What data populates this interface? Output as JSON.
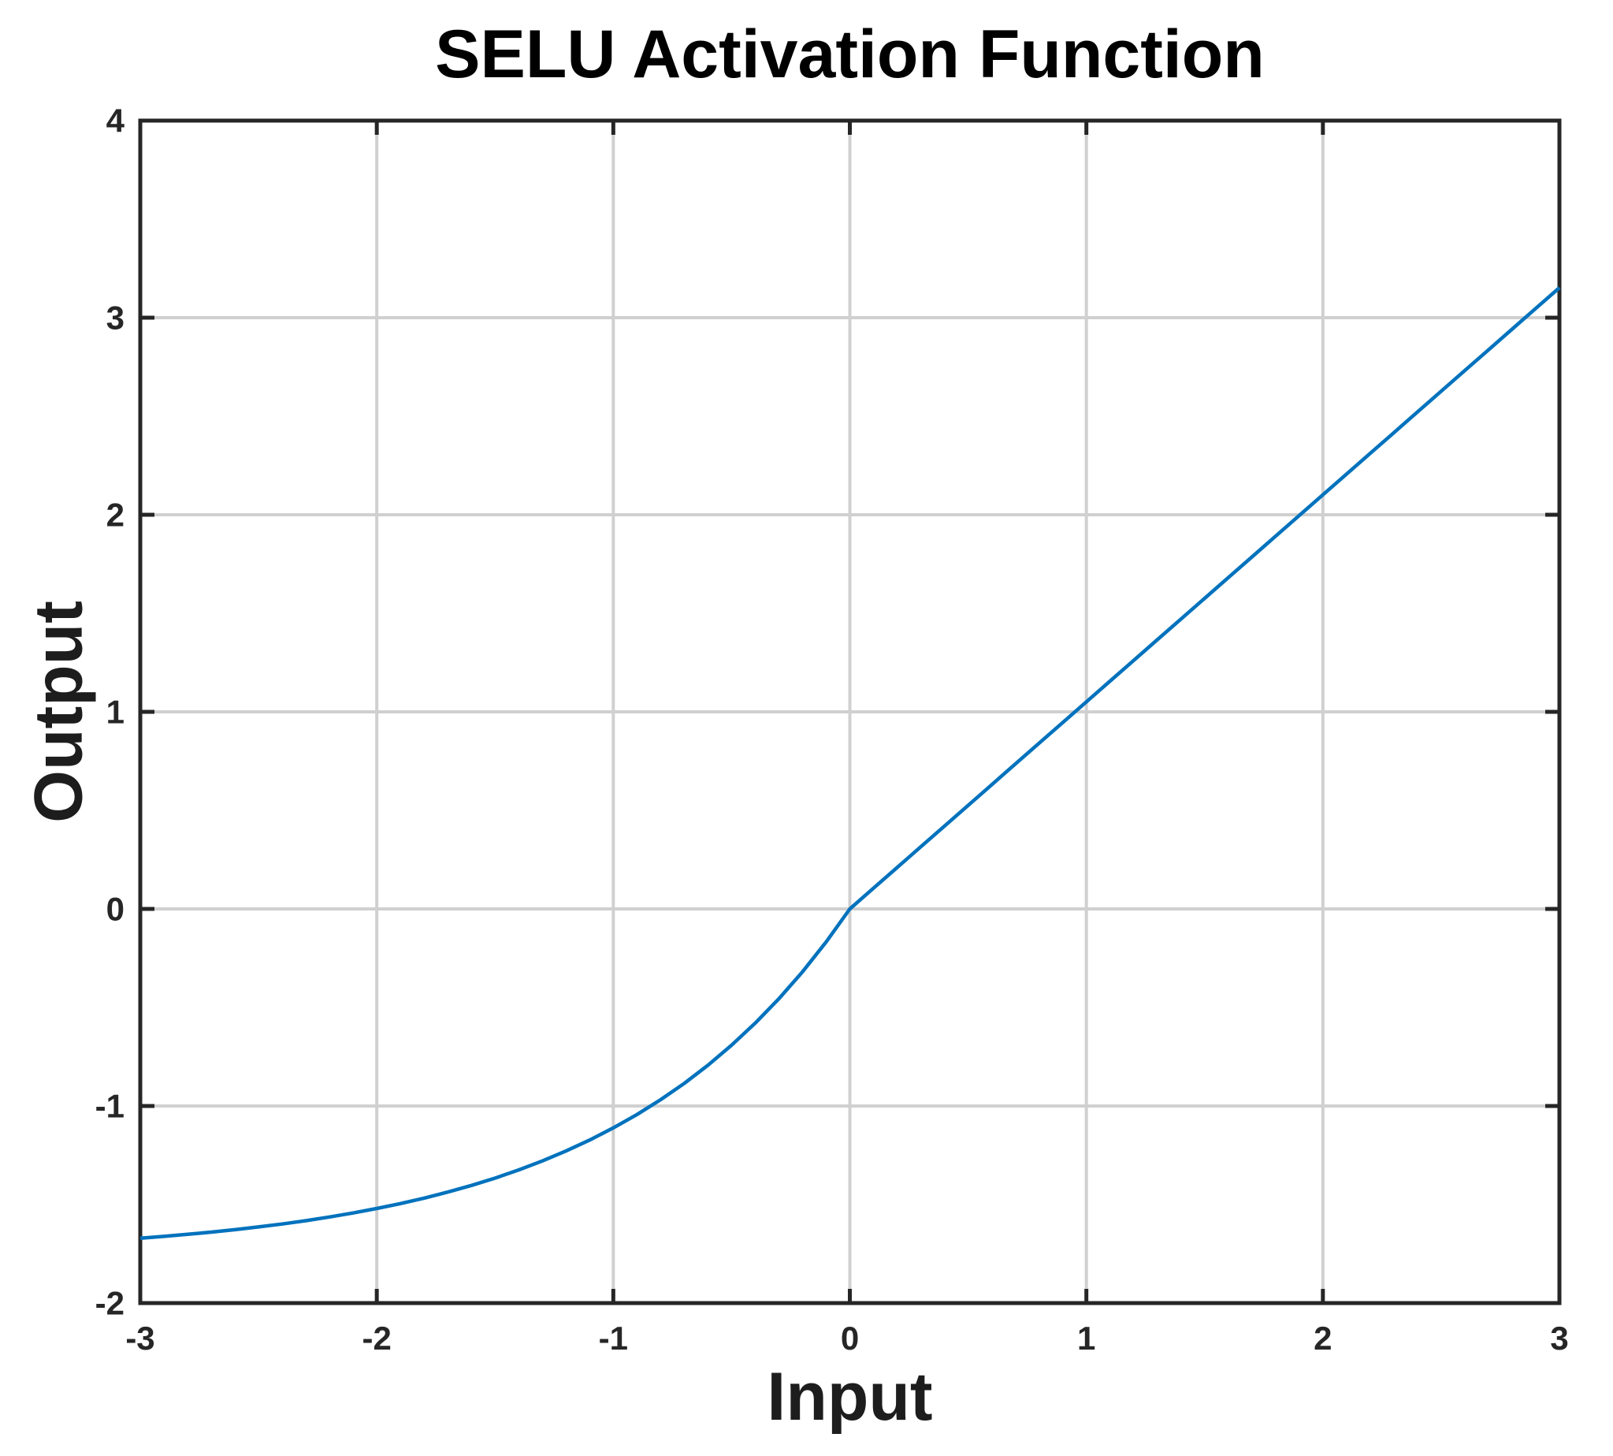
{
  "figure": {
    "background": "#ffffff"
  },
  "chart_data": {
    "type": "line",
    "title": "SELU Activation Function",
    "xlabel": "Input",
    "ylabel": "Output",
    "xlim": [
      -3,
      3
    ],
    "ylim": [
      -2,
      4
    ],
    "xticks": [
      -3,
      -2,
      -1,
      0,
      1,
      2,
      3
    ],
    "yticks": [
      -2,
      -1,
      0,
      1,
      2,
      3,
      4
    ],
    "grid": true,
    "legend": "none",
    "colors": {
      "line": "#0072BD",
      "grid": "#d0d0d0",
      "axis": "#262626",
      "tick_label": "#262626"
    },
    "series": [
      {
        "name": "SELU",
        "x": [
          -3.0,
          -2.9,
          -2.8,
          -2.7,
          -2.6,
          -2.5,
          -2.4,
          -2.3,
          -2.2,
          -2.1,
          -2.0,
          -1.9,
          -1.8,
          -1.7,
          -1.6,
          -1.5,
          -1.4,
          -1.3,
          -1.2,
          -1.1,
          -1.0,
          -0.9,
          -0.8,
          -0.7,
          -0.6,
          -0.5,
          -0.4,
          -0.3,
          -0.2,
          -0.1,
          0.0,
          0.1,
          0.2,
          0.3,
          0.4,
          0.5,
          0.6,
          0.7,
          0.8,
          0.9,
          1.0,
          1.1,
          1.2,
          1.3,
          1.4,
          1.5,
          1.6,
          1.7,
          1.8,
          1.9,
          2.0,
          2.1,
          2.2,
          2.3,
          2.4,
          2.5,
          2.6,
          2.7,
          2.8,
          2.9,
          3.0
        ],
        "y": [
          -1.6706,
          -1.6614,
          -1.6512,
          -1.64,
          -1.6275,
          -1.6138,
          -1.5986,
          -1.5818,
          -1.5633,
          -1.5428,
          -1.5202,
          -1.4951,
          -1.4675,
          -1.4369,
          -1.4031,
          -1.3658,
          -1.3245,
          -1.2789,
          -1.2285,
          -1.1729,
          -1.1113,
          -1.0433,
          -0.9681,
          -0.8851,
          -0.7932,
          -0.6918,
          -0.5796,
          -0.4557,
          -0.3187,
          -0.1673,
          0.0,
          0.1051,
          0.2101,
          0.3152,
          0.4203,
          0.5254,
          0.6304,
          0.7355,
          0.8406,
          0.9456,
          1.0507,
          1.1558,
          1.2608,
          1.3659,
          1.471,
          1.576,
          1.6811,
          1.7862,
          1.8913,
          1.9963,
          2.1014,
          2.2065,
          2.3115,
          2.4166,
          2.5217,
          2.6268,
          2.7318,
          2.8369,
          2.942,
          3.047,
          3.1521
        ]
      }
    ]
  }
}
